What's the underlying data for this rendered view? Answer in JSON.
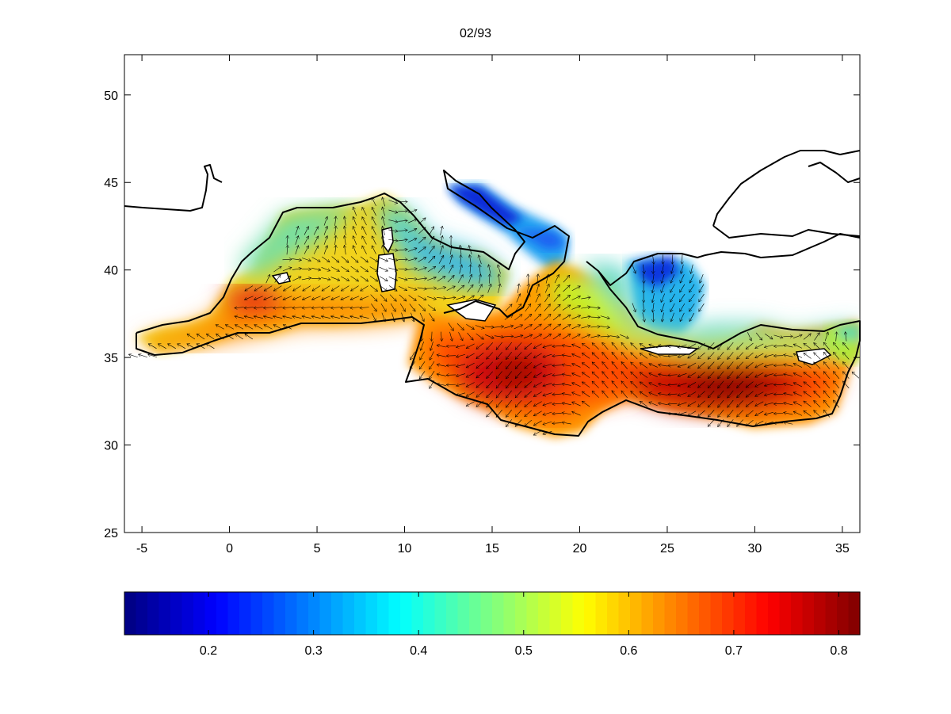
{
  "title": "02/93",
  "map": {
    "x_ticks": [
      "-5",
      "0",
      "5",
      "10",
      "15",
      "20",
      "25",
      "30",
      "35"
    ],
    "x_tick_values": [
      -5,
      0,
      5,
      10,
      15,
      20,
      25,
      30,
      35
    ],
    "y_ticks": [
      "25",
      "30",
      "35",
      "40",
      "45",
      "50"
    ],
    "y_tick_values": [
      25,
      30,
      35,
      40,
      45,
      50
    ],
    "xlim": [
      -6,
      36
    ],
    "ylim": [
      25,
      52.3
    ],
    "field_range": [
      0.12,
      0.82
    ],
    "hotspots": [
      {
        "lon": 1.5,
        "lat": 38,
        "value": 0.7
      },
      {
        "lon": 16,
        "lat": 34,
        "value": 0.78
      },
      {
        "lon": 28.5,
        "lat": 33.3,
        "value": 0.8
      }
    ]
  },
  "colorbar": {
    "tick_labels": [
      "0.2",
      "0.3",
      "0.4",
      "0.5",
      "0.6",
      "0.7",
      "0.8"
    ],
    "tick_values": [
      0.2,
      0.3,
      0.4,
      0.5,
      0.6,
      0.7,
      0.8
    ],
    "range": [
      0.12,
      0.82
    ],
    "colormap": "jet"
  },
  "colors": {
    "axis": "#000000",
    "coast": "#000000",
    "background": "#ffffff"
  }
}
